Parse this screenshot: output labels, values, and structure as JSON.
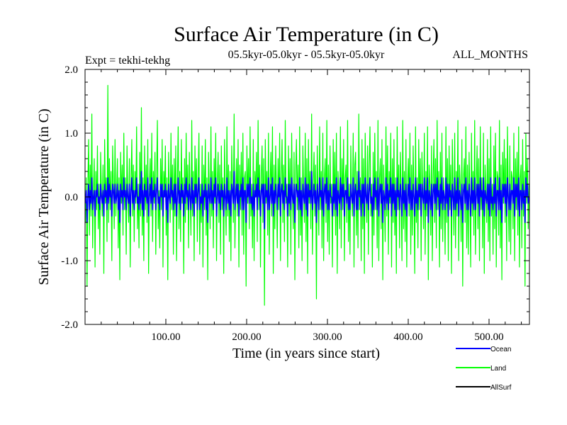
{
  "chart_data": {
    "type": "line",
    "title": "Surface Air Temperature (in C)",
    "subtitle_left": "Expt = tekhi-tekhg",
    "subtitle_center": "05.5kyr-05.0kyr - 05.5kyr-05.0kyr",
    "subtitle_right": "ALL_MONTHS",
    "xlabel": "Time (in years since start)",
    "ylabel": "Surface Air Temperature (in C)",
    "xlim": [
      0,
      550
    ],
    "ylim": [
      -2.0,
      2.0
    ],
    "x_ticks": [
      {
        "value": 100,
        "label": "100.00"
      },
      {
        "value": 200,
        "label": "200.00"
      },
      {
        "value": 300,
        "label": "300.00"
      },
      {
        "value": 400,
        "label": "400.00"
      },
      {
        "value": 500,
        "label": "500.00"
      }
    ],
    "y_ticks": [
      {
        "value": 2.0,
        "label": "2.0"
      },
      {
        "value": 1.0,
        "label": "1.0"
      },
      {
        "value": 0.0,
        "label": "0.0"
      },
      {
        "value": -1.0,
        "label": "-1.0"
      },
      {
        "value": -2.0,
        "label": "-2.0"
      }
    ],
    "series": [
      {
        "name": "Land",
        "color": "#00ff00",
        "values_note": "annual anomalies, approx. -1.7 to 1.75",
        "values": [
          -0.4,
          0.3,
          -1.4,
          0.2,
          0.9,
          -0.6,
          0.5,
          -0.3,
          1.3,
          -0.8,
          0.1,
          0.6,
          -1.1,
          0.4,
          -0.2,
          0.8,
          -0.5,
          0.2,
          -0.9,
          0.7,
          0.1,
          -0.3,
          0.5,
          -1.2,
          0.9,
          -0.1,
          0.3,
          -0.7,
          1.75,
          -0.4,
          0.6,
          -0.2,
          0.4,
          -1.0,
          0.8,
          0.2,
          -0.5,
          0.9,
          -0.3,
          0.1,
          0.6,
          -0.8,
          0.3,
          -1.3,
          0.7,
          -0.1,
          0.5,
          -0.6,
          1.0,
          -0.2,
          0.3,
          -0.9,
          0.8,
          0.0,
          -0.4,
          0.6,
          -1.1,
          0.2,
          0.9,
          -0.3,
          0.5,
          -0.7,
          0.4,
          -0.1,
          1.1,
          -0.5,
          0.2,
          -0.8,
          0.7,
          -0.3,
          1.4,
          -0.6,
          0.3,
          -1.0,
          0.8,
          -0.2,
          0.5,
          -0.4,
          0.9,
          -1.2,
          0.2,
          0.6,
          -0.3,
          1.0,
          -0.7,
          0.4,
          -0.1,
          0.7,
          -0.9,
          0.3,
          1.2,
          -0.5,
          0.1,
          -0.8,
          0.6,
          -0.2,
          0.9,
          -1.1,
          0.4,
          0.0,
          0.8,
          -0.6,
          0.3,
          -1.3,
          0.7,
          0.1,
          -0.4,
          1.0,
          -0.2,
          0.5,
          -0.9,
          0.6,
          -0.3,
          0.8,
          -1.0,
          0.2,
          1.1,
          -0.5,
          0.4,
          -0.7,
          0.9,
          -0.1,
          0.3,
          -1.2,
          0.6,
          -0.4,
          1.0,
          -0.2,
          0.5,
          -0.8,
          0.7,
          0.0,
          -0.6,
          1.2,
          -0.3,
          0.4,
          -1.0,
          0.8,
          -0.1,
          0.6,
          -0.7,
          0.3,
          1.0,
          -0.9,
          0.2,
          -0.4,
          0.8,
          -1.1,
          0.5,
          -0.2,
          0.9,
          -0.6,
          0.3,
          -1.3,
          0.7,
          0.1,
          -0.5,
          1.1,
          -0.3,
          0.4,
          -0.8,
          0.6,
          -0.1,
          1.0,
          -1.0,
          0.2,
          0.7,
          -0.4,
          0.5,
          -0.9,
          0.8,
          -0.2,
          0.3,
          -1.2,
          0.9,
          0.0,
          -0.6,
          1.1,
          -0.3,
          0.5,
          -0.7,
          0.4,
          -1.0,
          0.8,
          0.2,
          -0.4,
          1.3,
          -0.8,
          0.1,
          0.6,
          -0.3,
          0.9,
          -1.1,
          0.5,
          -0.2,
          0.7,
          -0.6,
          1.0,
          -0.9,
          0.3,
          0.4,
          -1.4,
          0.8,
          -0.1,
          0.6,
          -0.5,
          1.1,
          -0.3,
          0.2,
          -0.8,
          0.9,
          -1.0,
          0.4,
          0.0,
          0.7,
          -0.7,
          1.2,
          -0.2,
          0.5,
          -1.1,
          0.3,
          0.8,
          -0.4,
          0.6,
          -1.7,
          0.9,
          -0.1,
          0.4,
          -0.6,
          1.0,
          -0.9,
          0.2,
          0.7,
          -0.3,
          1.1,
          -1.2,
          0.5,
          -0.5,
          0.8,
          0.1,
          -0.8,
          0.6,
          -0.2,
          1.0,
          -1.0,
          0.3,
          0.9,
          -0.4,
          0.5,
          -0.7,
          1.2,
          -0.1,
          0.2,
          -1.1,
          0.8,
          -0.3,
          0.6,
          -0.9,
          1.0,
          0.0,
          -0.5,
          0.7,
          -1.3,
          0.4,
          0.9,
          -0.2,
          0.5,
          -0.8,
          1.1,
          -0.6,
          0.3,
          -1.0,
          0.8,
          0.1,
          -0.4,
          1.0,
          -0.7,
          0.6,
          -1.2,
          0.9,
          -0.1,
          0.4,
          -0.5,
          1.3,
          -0.9,
          0.2,
          0.7,
          -0.3,
          0.5,
          -1.6,
          0.8,
          0.0,
          -0.6,
          1.1,
          -0.2,
          0.4,
          -0.8,
          1.0,
          -1.0,
          0.3,
          0.6,
          -0.4,
          1.2,
          -0.7,
          0.5,
          -0.9,
          0.8,
          -0.1,
          0.2,
          -1.1,
          0.9,
          -0.3,
          0.7,
          -0.6,
          1.0,
          -1.2,
          0.4,
          0.1,
          -0.5,
          1.1,
          -0.8,
          0.6,
          -0.2,
          0.9,
          -1.0,
          0.3,
          0.5,
          -0.4,
          1.2,
          -0.7,
          0.2,
          -0.9,
          0.8,
          0.0,
          -0.3,
          1.0,
          -1.1,
          0.5,
          0.7,
          -0.6,
          0.4,
          -0.8,
          1.3,
          -0.2,
          0.3,
          -1.0,
          0.9,
          -0.5,
          0.6,
          -1.2,
          1.0,
          0.1,
          -0.4,
          0.8,
          -0.9,
          0.5,
          1.1,
          -0.3,
          0.2,
          -1.1,
          0.7,
          -0.6,
          1.0,
          -0.2,
          0.4,
          -0.8,
          1.2,
          -1.0,
          0.3,
          0.6,
          -0.5,
          0.9,
          -1.3,
          0.5,
          0.0,
          -0.7,
          1.1,
          -0.3,
          0.8,
          -0.9,
          0.4,
          -0.1,
          1.0,
          -1.1,
          0.6,
          -0.4,
          0.9,
          -0.6,
          0.3,
          -1.2,
          1.1,
          -0.2,
          0.5,
          -0.8,
          0.7,
          0.1,
          -1.0,
          1.2,
          -0.5,
          0.4,
          -0.7,
          0.9,
          -1.1,
          0.2,
          0.6,
          -0.3,
          1.0,
          -0.9,
          0.5,
          -0.6,
          0.8,
          0.0,
          -1.2,
          1.1,
          -0.4,
          0.3,
          -0.8,
          0.9,
          -0.2,
          0.6,
          -1.0,
          0.7,
          0.1,
          -0.5,
          1.0,
          -0.9,
          0.4,
          -0.3,
          1.1,
          -1.3,
          0.5,
          0.2,
          -0.6,
          0.8,
          -1.0,
          0.3,
          0.9,
          -0.4,
          0.6,
          -0.8,
          1.2,
          -0.2,
          0.4,
          -1.1,
          0.7,
          -0.5,
          1.0,
          -0.7,
          0.3,
          0.0,
          -0.9,
          1.1,
          -0.4,
          0.6,
          -1.0,
          0.8,
          -0.2,
          0.5,
          -1.2,
          0.9,
          0.1,
          -0.6,
          1.0,
          -0.8,
          0.4,
          -0.3,
          1.2,
          -1.0,
          0.5,
          0.2,
          -0.7,
          0.9,
          -1.4,
          0.3,
          0.6,
          -0.4,
          1.1,
          -0.8,
          0.5,
          -0.9,
          0.7,
          0.0,
          -1.1,
          1.0,
          -0.3,
          0.4,
          -0.6,
          1.2,
          -0.9,
          0.2,
          0.8,
          -0.5,
          0.6,
          -1.0,
          1.1,
          -0.2,
          0.3,
          -0.8,
          1.0,
          -1.2,
          0.5,
          0.1,
          -0.4,
          0.9,
          -0.7,
          0.6,
          -1.0,
          1.1,
          -0.3,
          0.2,
          -0.9,
          0.8,
          -0.5,
          1.0,
          -1.1,
          0.4,
          0.3,
          -0.6,
          1.2,
          -0.8,
          0.5,
          -1.3,
          0.7,
          -0.1,
          0.9,
          -0.4,
          0.6,
          -1.0,
          1.1,
          0.0,
          -0.7,
          0.8,
          -0.9,
          0.4,
          0.3,
          -0.5,
          1.0,
          -1.0,
          0.6,
          -0.2,
          0.7,
          -0.6,
          1.1,
          -1.1,
          0.3,
          0.5,
          -0.8,
          0.9,
          -0.3,
          0.4,
          -1.4,
          1.0,
          -0.1,
          0.6,
          -0.5,
          0.2
        ]
      },
      {
        "name": "Ocean",
        "color": "#0000ff",
        "values_note": "annual anomalies, approx. -0.5 to 0.5",
        "values": [
          -0.1,
          0.1,
          -0.4,
          0.0,
          0.2,
          -0.2,
          0.1,
          -0.1,
          0.3,
          -0.2,
          0.0,
          0.1,
          -0.3,
          0.1,
          0.0,
          0.2,
          -0.1,
          0.0,
          -0.2,
          0.2,
          0.0,
          -0.1,
          0.1,
          -0.3,
          0.2,
          0.0,
          0.1,
          -0.2,
          0.3,
          -0.1,
          0.2,
          0.0,
          0.1,
          -0.3,
          0.2,
          0.1,
          -0.1,
          0.2,
          -0.1,
          0.0,
          0.2,
          -0.2,
          0.1,
          -0.4,
          0.2,
          0.0,
          0.1,
          -0.2,
          0.3,
          0.0,
          0.1,
          -0.2,
          0.2,
          0.0,
          -0.1,
          0.2,
          -0.3,
          0.1,
          0.3,
          -0.1,
          0.1,
          -0.2,
          0.1,
          0.0,
          0.3,
          -0.1,
          0.0,
          -0.2,
          0.2,
          -0.1,
          0.4,
          -0.2,
          0.1,
          -0.3,
          0.2,
          0.0,
          0.1,
          -0.1,
          0.3,
          -0.3,
          0.0,
          0.2,
          -0.1,
          0.3,
          -0.2,
          0.1,
          0.0,
          0.2,
          -0.2,
          0.1,
          0.3,
          -0.1,
          0.0,
          -0.2,
          0.2,
          0.0,
          0.2,
          -0.3,
          0.1,
          0.0,
          0.2,
          -0.2,
          0.1,
          -0.4,
          0.2,
          0.0,
          -0.1,
          0.3,
          0.0,
          0.1,
          -0.2,
          0.2,
          -0.1,
          0.2,
          -0.3,
          0.0,
          0.3,
          -0.1,
          0.1,
          -0.2,
          0.2,
          0.0,
          0.1,
          -0.3,
          0.2,
          -0.1,
          0.3,
          0.0,
          0.1,
          -0.2,
          0.2,
          0.0,
          -0.2,
          0.3,
          -0.1,
          0.1,
          -0.3,
          0.2,
          0.0,
          0.2,
          -0.2,
          0.1,
          0.3,
          -0.2,
          0.0,
          -0.1,
          0.2,
          -0.3,
          0.1,
          0.0,
          0.2,
          -0.2,
          0.1,
          -0.4,
          0.2,
          0.0,
          -0.1,
          0.3,
          -0.1,
          0.1,
          -0.2,
          0.2,
          0.0,
          0.3,
          -0.3,
          0.0,
          0.2,
          -0.1,
          0.1,
          -0.2,
          0.2,
          0.0,
          0.1,
          -0.3,
          0.2,
          0.0,
          -0.2,
          0.3,
          -0.1,
          0.1,
          -0.2,
          0.1,
          -0.3,
          0.2,
          0.1,
          -0.1,
          0.4,
          -0.2,
          0.0,
          0.2,
          -0.1,
          0.2,
          -0.3,
          0.1,
          0.0,
          0.2,
          -0.2,
          0.3,
          -0.2,
          0.1,
          0.1,
          -0.4,
          0.2,
          0.0,
          0.2,
          -0.1,
          0.3,
          -0.1,
          0.0,
          -0.2,
          0.2,
          -0.3,
          0.1,
          0.0,
          0.2,
          -0.2,
          0.3,
          0.0,
          0.1,
          -0.3,
          0.1,
          0.2,
          -0.1,
          0.2,
          -0.5,
          0.2,
          0.0,
          0.1,
          -0.2,
          0.3,
          -0.2,
          0.0,
          0.2,
          -0.1,
          0.3,
          -0.3,
          0.1,
          -0.1,
          0.2,
          0.0,
          -0.2,
          0.2,
          0.0,
          0.3,
          -0.3,
          0.1,
          0.2,
          -0.1,
          0.1,
          -0.2,
          0.3,
          0.0,
          0.0,
          -0.3,
          0.2,
          -0.1,
          0.2,
          -0.2,
          0.3,
          0.0,
          -0.1,
          0.2,
          -0.4,
          0.1,
          0.2,
          0.0,
          0.1,
          -0.2,
          0.3,
          -0.2,
          0.1,
          -0.3,
          0.2,
          0.0,
          -0.1,
          0.3,
          -0.2,
          0.2,
          -0.3,
          0.2,
          0.0,
          0.1,
          -0.1,
          0.4,
          -0.2,
          0.0,
          0.2,
          -0.1,
          0.1,
          -0.4,
          0.2,
          0.0,
          -0.2,
          0.3,
          0.0,
          0.1,
          -0.2,
          0.3,
          -0.3,
          0.1,
          0.2,
          -0.1,
          0.3,
          -0.2,
          0.1,
          -0.2,
          0.2,
          0.0,
          0.0,
          -0.3,
          0.2,
          -0.1,
          0.2,
          -0.2,
          0.3,
          -0.3,
          0.1,
          0.0,
          -0.1,
          0.3,
          -0.2,
          0.2,
          0.0,
          0.2,
          -0.3,
          0.1,
          0.1,
          -0.1,
          0.3,
          -0.2,
          0.0,
          -0.2,
          0.2,
          0.0,
          -0.1,
          0.3,
          -0.3,
          0.1,
          0.2,
          -0.2,
          0.1,
          -0.2,
          0.4,
          0.0,
          0.1,
          -0.3,
          0.2,
          -0.1,
          0.2,
          -0.3,
          0.3,
          0.0,
          -0.1,
          0.2,
          -0.2,
          0.1,
          0.3,
          -0.1,
          0.0,
          -0.3,
          0.2,
          -0.2,
          0.3,
          0.0,
          0.1,
          -0.2,
          0.3,
          -0.3,
          0.1,
          0.2,
          -0.1,
          0.2,
          -0.4,
          0.1,
          0.0,
          -0.2,
          0.3,
          -0.1,
          0.2,
          -0.2,
          0.1,
          0.0,
          0.3,
          -0.3,
          0.2,
          -0.1,
          0.2,
          -0.2,
          0.1,
          -0.3,
          0.3,
          0.0,
          0.1,
          -0.2,
          0.2,
          0.0,
          -0.3,
          0.3,
          -0.1,
          0.1,
          -0.2,
          0.2,
          -0.3,
          0.0,
          0.2,
          -0.1,
          0.3,
          -0.2,
          0.1,
          -0.2,
          0.2,
          0.0,
          -0.3,
          0.3,
          -0.1,
          0.1,
          -0.2,
          0.2,
          0.0,
          0.2,
          -0.3,
          0.2,
          0.0,
          -0.1,
          0.3,
          -0.2,
          0.1,
          -0.1,
          0.3,
          -0.4,
          0.1,
          0.0,
          -0.2,
          0.2,
          -0.3,
          0.1,
          0.2,
          -0.1,
          0.2,
          -0.2,
          0.3,
          0.0,
          0.1,
          -0.3,
          0.2,
          -0.1,
          0.3,
          -0.2,
          0.1,
          0.0,
          -0.2,
          0.3,
          -0.1,
          0.2,
          -0.3,
          0.2,
          0.0,
          0.1,
          -0.3,
          0.2,
          0.0,
          -0.2,
          0.3,
          -0.2,
          0.1,
          -0.1,
          0.3,
          -0.3,
          0.1,
          0.0,
          -0.2,
          0.2,
          -0.4,
          0.1,
          0.2,
          -0.1,
          0.3,
          -0.2,
          0.1,
          -0.2,
          0.2,
          0.0,
          -0.3,
          0.3,
          -0.1,
          0.1,
          -0.2,
          0.3,
          -0.2,
          0.0,
          0.2,
          -0.1,
          0.2,
          -0.3,
          0.3,
          0.0,
          0.1,
          -0.2,
          0.3,
          -0.3,
          0.1,
          0.0,
          -0.1,
          0.2,
          -0.2,
          0.2,
          -0.3,
          0.3,
          -0.1,
          0.0,
          -0.2,
          0.2,
          -0.1,
          0.3,
          -0.3,
          0.1,
          0.1,
          -0.2,
          0.3,
          -0.2,
          0.1,
          -0.4,
          0.2,
          0.0,
          0.2,
          -0.1,
          0.2,
          -0.3,
          0.3,
          0.0,
          -0.2,
          0.2,
          -0.2,
          0.1,
          0.1,
          -0.1,
          0.3,
          -0.3,
          0.2,
          0.0,
          0.2,
          -0.2,
          0.3,
          -0.3,
          0.1,
          0.1,
          -0.2,
          0.2,
          -0.1,
          0.1,
          -0.4,
          0.3,
          0.0,
          0.2,
          -0.1,
          0.0
        ]
      },
      {
        "name": "AllSurf",
        "color": "#000000",
        "values_note": "hidden beneath Ocean/Land traces; legend entry only",
        "values": []
      }
    ],
    "legend": {
      "placement": "bottom-right",
      "entries": [
        {
          "name": "Ocean",
          "color": "#0000ff"
        },
        {
          "name": "Land",
          "color": "#00ff00"
        },
        {
          "name": "AllSurf",
          "color": "#000000"
        }
      ]
    }
  }
}
